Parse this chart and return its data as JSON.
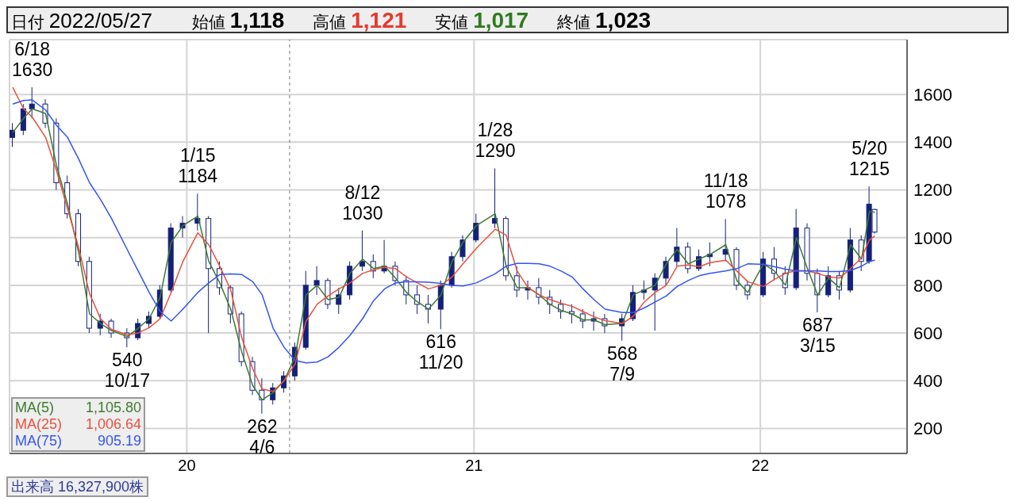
{
  "chart_data": {
    "type": "candlestick",
    "color": "#14207a",
    "x": [
      "2019-05-24",
      "2019-06-07",
      "2019-06-18",
      "2019-07-05",
      "2019-07-19",
      "2019-08-02",
      "2019-08-16",
      "2019-08-30",
      "2019-09-13",
      "2019-09-27",
      "2019-10-17",
      "2019-10-31",
      "2019-11-14",
      "2019-11-28",
      "2019-12-12",
      "2019-12-27",
      "2020-01-15",
      "2020-01-29",
      "2020-02-12",
      "2020-02-26",
      "2020-03-11",
      "2020-03-25",
      "2020-04-06",
      "2020-04-20",
      "2020-05-04",
      "2020-05-18",
      "2020-06-01",
      "2020-06-15",
      "2020-06-29",
      "2020-07-13",
      "2020-07-27",
      "2020-08-12",
      "2020-08-26",
      "2020-09-09",
      "2020-09-23",
      "2020-10-07",
      "2020-10-21",
      "2020-11-04",
      "2020-11-20",
      "2020-12-04",
      "2020-12-18",
      "2021-01-04",
      "2021-01-28",
      "2021-02-11",
      "2021-02-25",
      "2021-03-11",
      "2021-03-25",
      "2021-04-08",
      "2021-04-22",
      "2021-05-06",
      "2021-05-20",
      "2021-06-03",
      "2021-06-17",
      "2021-07-09",
      "2021-07-23",
      "2021-08-06",
      "2021-08-20",
      "2021-09-03",
      "2021-09-17",
      "2021-10-01",
      "2021-10-15",
      "2021-10-29",
      "2021-11-18",
      "2021-12-02",
      "2021-12-16",
      "2022-01-05",
      "2022-01-19",
      "2022-02-02",
      "2022-02-16",
      "2022-03-02",
      "2022-03-15",
      "2022-03-29",
      "2022-04-12",
      "2022-04-26",
      "2022-05-10",
      "2022-05-20",
      "2022-05-27"
    ],
    "ohlc": [
      [
        1420,
        1480,
        1380,
        1450
      ],
      [
        1450,
        1560,
        1430,
        1540
      ],
      [
        1540,
        1630,
        1500,
        1560
      ],
      [
        1560,
        1580,
        1460,
        1480
      ],
      [
        1480,
        1500,
        1200,
        1230
      ],
      [
        1230,
        1260,
        1080,
        1100
      ],
      [
        1100,
        1120,
        880,
        900
      ],
      [
        900,
        920,
        600,
        620
      ],
      [
        620,
        680,
        590,
        650
      ],
      [
        650,
        660,
        580,
        600
      ],
      [
        600,
        620,
        540,
        580
      ],
      [
        580,
        660,
        570,
        640
      ],
      [
        640,
        690,
        620,
        670
      ],
      [
        670,
        800,
        660,
        780
      ],
      [
        780,
        1060,
        770,
        1040
      ],
      [
        1040,
        1090,
        1000,
        1060
      ],
      [
        1060,
        1184,
        1030,
        1080
      ],
      [
        1080,
        1090,
        600,
        870
      ],
      [
        870,
        900,
        760,
        790
      ],
      [
        790,
        800,
        640,
        680
      ],
      [
        680,
        690,
        460,
        480
      ],
      [
        480,
        500,
        340,
        360
      ],
      [
        360,
        410,
        262,
        320
      ],
      [
        320,
        390,
        300,
        370
      ],
      [
        370,
        440,
        350,
        420
      ],
      [
        420,
        560,
        400,
        540
      ],
      [
        540,
        860,
        530,
        800
      ],
      [
        800,
        880,
        760,
        820
      ],
      [
        820,
        830,
        700,
        720
      ],
      [
        720,
        790,
        680,
        760
      ],
      [
        760,
        900,
        740,
        880
      ],
      [
        880,
        1030,
        860,
        900
      ],
      [
        900,
        930,
        830,
        860
      ],
      [
        860,
        990,
        850,
        880
      ],
      [
        880,
        900,
        800,
        820
      ],
      [
        820,
        840,
        720,
        760
      ],
      [
        760,
        800,
        680,
        720
      ],
      [
        720,
        760,
        640,
        700
      ],
      [
        700,
        820,
        616,
        800
      ],
      [
        800,
        940,
        790,
        920
      ],
      [
        920,
        1010,
        900,
        990
      ],
      [
        990,
        1100,
        980,
        1060
      ],
      [
        1060,
        1290,
        1040,
        1080
      ],
      [
        1080,
        1090,
        820,
        840
      ],
      [
        840,
        880,
        750,
        780
      ],
      [
        780,
        820,
        740,
        790
      ],
      [
        790,
        830,
        720,
        750
      ],
      [
        750,
        780,
        680,
        720
      ],
      [
        720,
        740,
        660,
        690
      ],
      [
        690,
        720,
        640,
        680
      ],
      [
        680,
        700,
        620,
        650
      ],
      [
        650,
        690,
        610,
        660
      ],
      [
        660,
        680,
        600,
        630
      ],
      [
        630,
        680,
        568,
        660
      ],
      [
        660,
        800,
        650,
        770
      ],
      [
        770,
        820,
        740,
        780
      ],
      [
        780,
        850,
        610,
        830
      ],
      [
        830,
        920,
        800,
        900
      ],
      [
        900,
        1040,
        880,
        960
      ],
      [
        960,
        980,
        850,
        870
      ],
      [
        870,
        950,
        860,
        920
      ],
      [
        920,
        980,
        880,
        930
      ],
      [
        930,
        1078,
        900,
        950
      ],
      [
        950,
        960,
        780,
        800
      ],
      [
        800,
        820,
        740,
        760
      ],
      [
        760,
        940,
        750,
        910
      ],
      [
        910,
        960,
        820,
        850
      ],
      [
        850,
        880,
        760,
        790
      ],
      [
        790,
        1120,
        780,
        1040
      ],
      [
        1040,
        1060,
        820,
        850
      ],
      [
        850,
        870,
        687,
        760
      ],
      [
        760,
        880,
        750,
        840
      ],
      [
        840,
        860,
        740,
        780
      ],
      [
        780,
        1040,
        770,
        990
      ],
      [
        990,
        1010,
        860,
        900
      ],
      [
        900,
        1215,
        890,
        1140
      ],
      [
        1118,
        1121,
        1017,
        1023
      ]
    ],
    "series": [
      {
        "name": "MA(5)",
        "type": "line",
        "color": "#3e7a2e",
        "values": [
          1440,
          1500,
          1540,
          1520,
          1300,
          1140,
          940,
          680,
          640,
          610,
          585,
          620,
          660,
          750,
          980,
          1050,
          1090,
          900,
          810,
          700,
          520,
          380,
          320,
          350,
          400,
          500,
          760,
          800,
          740,
          750,
          850,
          910,
          870,
          880,
          830,
          770,
          730,
          700,
          760,
          900,
          980,
          1050,
          1100,
          880,
          790,
          790,
          760,
          720,
          695,
          680,
          655,
          655,
          635,
          640,
          760,
          780,
          800,
          890,
          950,
          890,
          910,
          930,
          970,
          820,
          770,
          890,
          860,
          800,
          1000,
          870,
          760,
          830,
          790,
          970,
          910,
          1110,
          1106
        ]
      },
      {
        "name": "MA(25)",
        "type": "line",
        "color": "#e8503c",
        "values": [
          1630,
          1540,
          1505,
          1420,
          1280,
          1120,
          960,
          765,
          660,
          615,
          592,
          600,
          622,
          660,
          770,
          900,
          1020,
          970,
          880,
          780,
          580,
          450,
          365,
          355,
          400,
          470,
          650,
          720,
          755,
          785,
          810,
          850,
          865,
          875,
          870,
          835,
          810,
          785,
          800,
          835,
          890,
          955,
          1035,
          1010,
          860,
          790,
          760,
          740,
          725,
          712,
          690,
          668,
          652,
          640,
          670,
          730,
          770,
          800,
          880,
          885,
          878,
          895,
          905,
          860,
          815,
          795,
          825,
          850,
          862,
          860,
          850,
          835,
          830,
          870,
          915,
          990,
          1007
        ]
      },
      {
        "name": "MA(75)",
        "type": "line",
        "color": "#3355f0",
        "values": [
          1560,
          1575,
          1577,
          1535,
          1470,
          1420,
          1330,
          1230,
          1160,
          1080,
          950,
          860,
          770,
          690,
          650,
          700,
          770,
          810,
          845,
          848,
          845,
          815,
          760,
          620,
          540,
          485,
          475,
          478,
          500,
          540,
          590,
          660,
          735,
          785,
          810,
          815,
          815,
          813,
          808,
          800,
          797,
          810,
          848,
          880,
          892,
          892,
          890,
          880,
          860,
          835,
          785,
          740,
          700,
          686,
          686,
          705,
          730,
          755,
          795,
          820,
          840,
          850,
          860,
          870,
          890,
          888,
          878,
          868,
          860,
          860,
          860,
          858,
          858,
          862,
          880,
          900,
          905
        ]
      }
    ],
    "xlim": [
      "2019-05-20",
      "2022-07-07"
    ],
    "xticks": [
      {
        "value": "2020-01-01",
        "label": "20"
      },
      {
        "value": "2021-01-01",
        "label": "21"
      },
      {
        "value": "2022-01-01",
        "label": "22"
      }
    ],
    "ylim": [
      95,
      1830
    ],
    "yticks": [
      200,
      400,
      600,
      800,
      1000,
      1200,
      1400,
      1600
    ],
    "grid": true,
    "legend": "bottom left",
    "ref_lines": [
      {
        "axis": "x",
        "value": "2020-05-11",
        "color": "#777777",
        "line_style": "dashed"
      }
    ],
    "annotations": [
      "日付 2022/05/27",
      "始値 1,118",
      "高値 1,121",
      "安値 1,017",
      "終値 1,023",
      "1,105.80",
      "1,006.64",
      "905.19",
      "出来高 16,327,900株",
      {
        "text": "6/18\n1630",
        "x": "2019-06-18",
        "y": 1630
      },
      {
        "text": "540\n10/17",
        "x": "2019-10-17",
        "y": 540
      },
      {
        "text": "1/15\n1184",
        "x": "2020-01-15",
        "y": 1184
      },
      {
        "text": "262\n4/6",
        "x": "2020-04-06",
        "y": 262
      },
      {
        "text": "8/12\n1030",
        "x": "2020-08-12",
        "y": 1030
      },
      {
        "text": "616\n11/20",
        "x": "2020-11-20",
        "y": 616
      },
      {
        "text": "1/28\n1290",
        "x": "2021-01-28",
        "y": 1290
      },
      {
        "text": "568\n7/9",
        "x": "2021-07-09",
        "y": 568
      },
      {
        "text": "11/18\n1078",
        "x": "2021-11-18",
        "y": 1078
      },
      {
        "text": "687\n3/15",
        "x": "2022-03-15",
        "y": 687
      },
      {
        "text": "5/20\n1215",
        "x": "2022-05-20",
        "y": 1215
      }
    ]
  }
}
